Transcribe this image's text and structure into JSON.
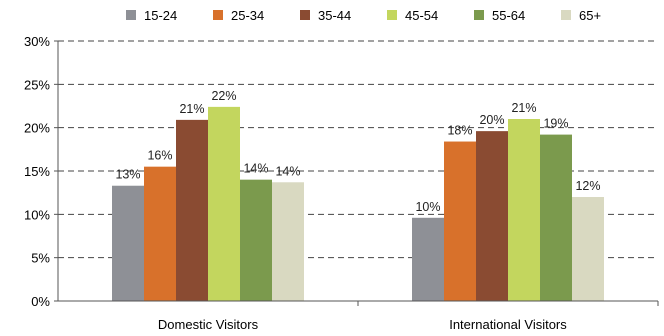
{
  "chart_data": {
    "type": "bar",
    "title": "",
    "xlabel": "",
    "ylabel": "",
    "categories": [
      "Domestic Visitors",
      "International Visitors"
    ],
    "series": [
      {
        "name": "15-24",
        "color": "#8e9096",
        "values": [
          13.3,
          9.6
        ],
        "labels": [
          "13%",
          "10%"
        ]
      },
      {
        "name": "25-34",
        "color": "#d8712b",
        "values": [
          15.5,
          18.4
        ],
        "labels": [
          "16%",
          "18%"
        ]
      },
      {
        "name": "35-44",
        "color": "#8a4b32",
        "values": [
          20.9,
          19.6
        ],
        "labels": [
          "21%",
          "20%"
        ]
      },
      {
        "name": "45-54",
        "color": "#c3d65e",
        "values": [
          22.4,
          21.0
        ],
        "labels": [
          "22%",
          "21%"
        ]
      },
      {
        "name": "55-64",
        "color": "#7b9a4d",
        "values": [
          14.0,
          19.2
        ],
        "labels": [
          "14%",
          "19%"
        ]
      },
      {
        "name": "65+",
        "color": "#d9d9c1",
        "values": [
          13.7,
          12.0
        ],
        "labels": [
          "14%",
          "12%"
        ]
      }
    ],
    "ylim": [
      0,
      30
    ],
    "yticks": [
      0,
      5,
      10,
      15,
      20,
      25,
      30
    ],
    "ytick_labels": [
      "0%",
      "5%",
      "10%",
      "15%",
      "20%",
      "25%",
      "30%"
    ],
    "grid": "dashed horizontal",
    "legend": "top"
  }
}
